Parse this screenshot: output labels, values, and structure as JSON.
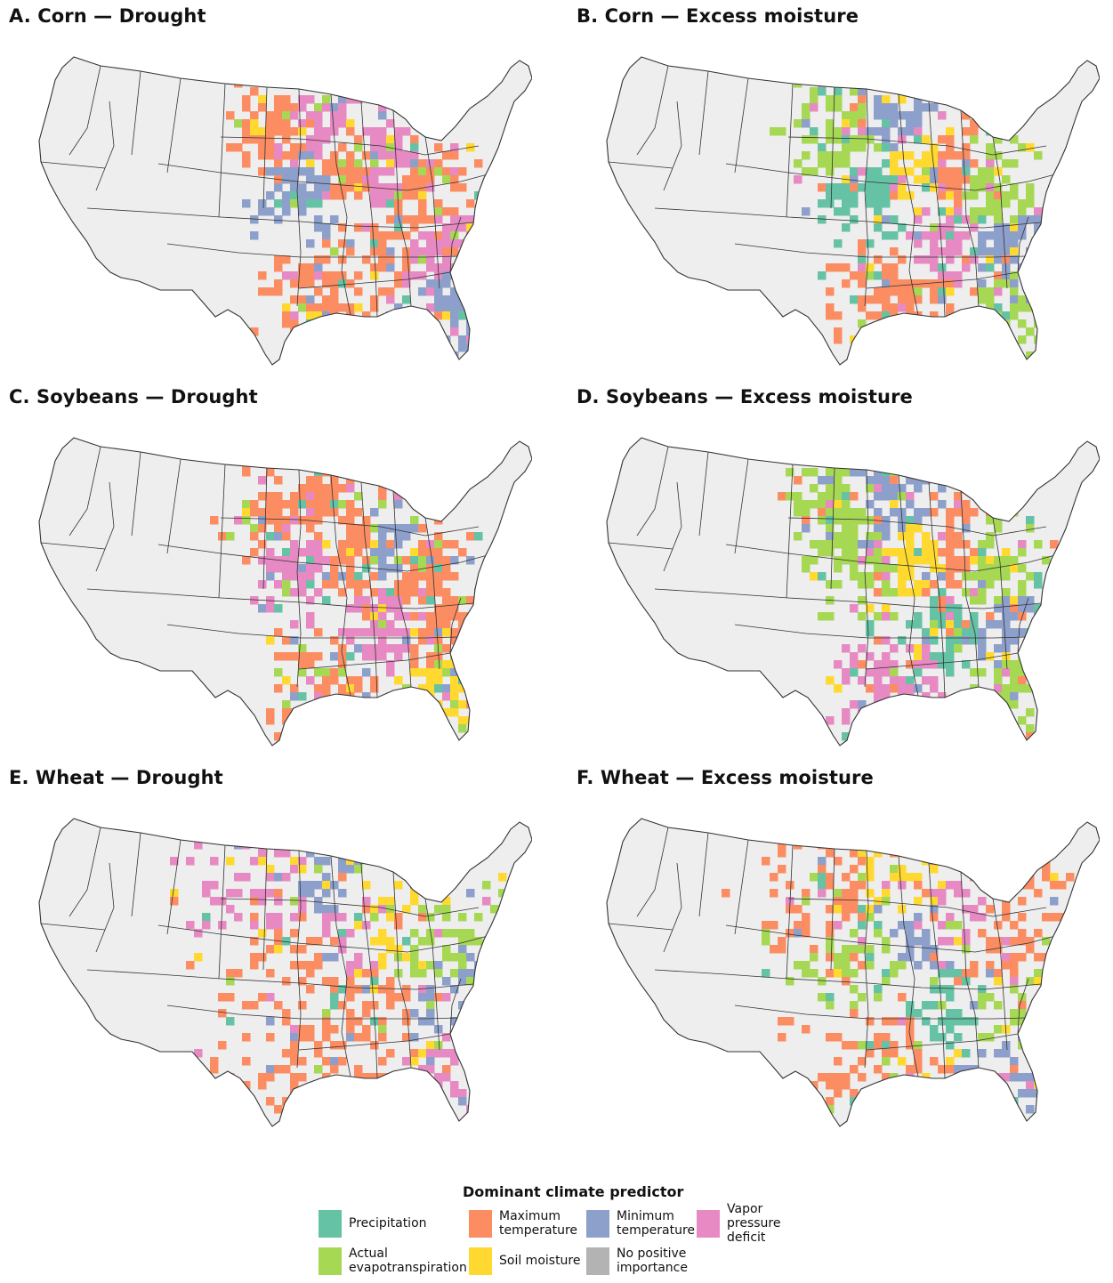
{
  "panels": [
    {
      "id": "A",
      "title": "A. Corn — Drought",
      "dominant": [
        "max_temp",
        "vpd",
        "min_temp",
        "max_temp",
        "vpd",
        "max_temp",
        "max_temp",
        "vpd",
        "min_temp",
        "max_temp"
      ]
    },
    {
      "id": "B",
      "title": "B. Corn — Excess moisture",
      "dominant": [
        "aet",
        "min_temp",
        "precip",
        "soil",
        "max_temp",
        "aet",
        "vpd",
        "min_temp",
        "aet",
        "max_temp"
      ]
    },
    {
      "id": "C",
      "title": "C. Soybeans — Drought",
      "dominant": [
        "max_temp",
        "max_temp",
        "vpd",
        "max_temp",
        "min_temp",
        "max_temp",
        "vpd",
        "max_temp",
        "soil",
        "max_temp"
      ]
    },
    {
      "id": "D",
      "title": "D. Soybeans — Excess moisture",
      "dominant": [
        "aet",
        "min_temp",
        "aet",
        "soil",
        "max_temp",
        "aet",
        "precip",
        "min_temp",
        "aet",
        "vpd"
      ]
    },
    {
      "id": "E",
      "title": "E. Wheat — Drought",
      "dominant": [
        "vpd",
        "min_temp",
        "max_temp",
        "vpd",
        "soil",
        "aet",
        "max_temp",
        "min_temp",
        "vpd",
        "max_temp"
      ]
    },
    {
      "id": "F",
      "title": "F. Wheat — Excess moisture",
      "dominant": [
        "max_temp",
        "soil",
        "aet",
        "min_temp",
        "vpd",
        "max_temp",
        "precip",
        "aet",
        "min_temp",
        "max_temp"
      ]
    }
  ],
  "legend": {
    "title": "Dominant climate predictor",
    "items": [
      {
        "key": "precip",
        "label": "Precipitation",
        "color": "#66c2a5"
      },
      {
        "key": "max_temp",
        "label": "Maximum\ntemperature",
        "color": "#fc8d62"
      },
      {
        "key": "min_temp",
        "label": "Minimum\ntemperature",
        "color": "#8da0cb"
      },
      {
        "key": "vpd",
        "label": "Vapor pressure\ndeficit",
        "color": "#e78ac3"
      },
      {
        "key": "aet",
        "label": "Actual\nevapotranspiration",
        "color": "#a6d854"
      },
      {
        "key": "soil",
        "label": "Soil moisture",
        "color": "#ffd92f"
      },
      {
        "key": "none",
        "label": "No positive\nimportance",
        "color": "#b3b3b3"
      }
    ]
  },
  "colors": {
    "background_land": "#eeeeee",
    "state_border": "#333333"
  }
}
